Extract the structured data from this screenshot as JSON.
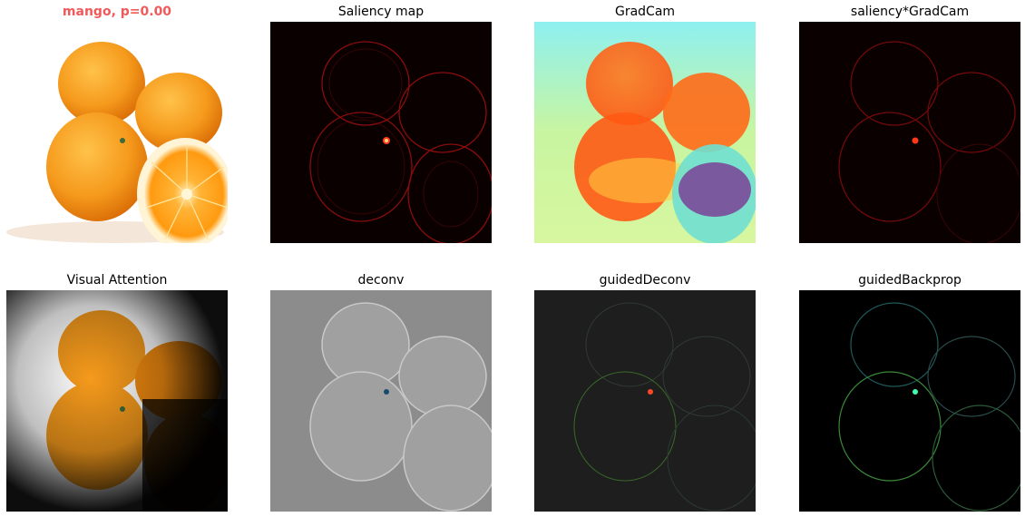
{
  "panels": [
    {
      "title": "mango, p=0.00",
      "kind": "original"
    },
    {
      "title": "Saliency map",
      "kind": "saliency"
    },
    {
      "title": "GradCam",
      "kind": "gradcam"
    },
    {
      "title": "saliency*GradCam",
      "kind": "saliency_gradcam"
    },
    {
      "title": "Visual Attention",
      "kind": "attention"
    },
    {
      "title": "deconv",
      "kind": "deconv"
    },
    {
      "title": "guidedDeconv",
      "kind": "guided_deconv"
    },
    {
      "title": "guidedBackprop",
      "kind": "guided_backprop"
    }
  ],
  "colors": {
    "prediction_title": "#f05a5a",
    "orange": "#f59a1c",
    "saliency_red": "#c01010"
  }
}
